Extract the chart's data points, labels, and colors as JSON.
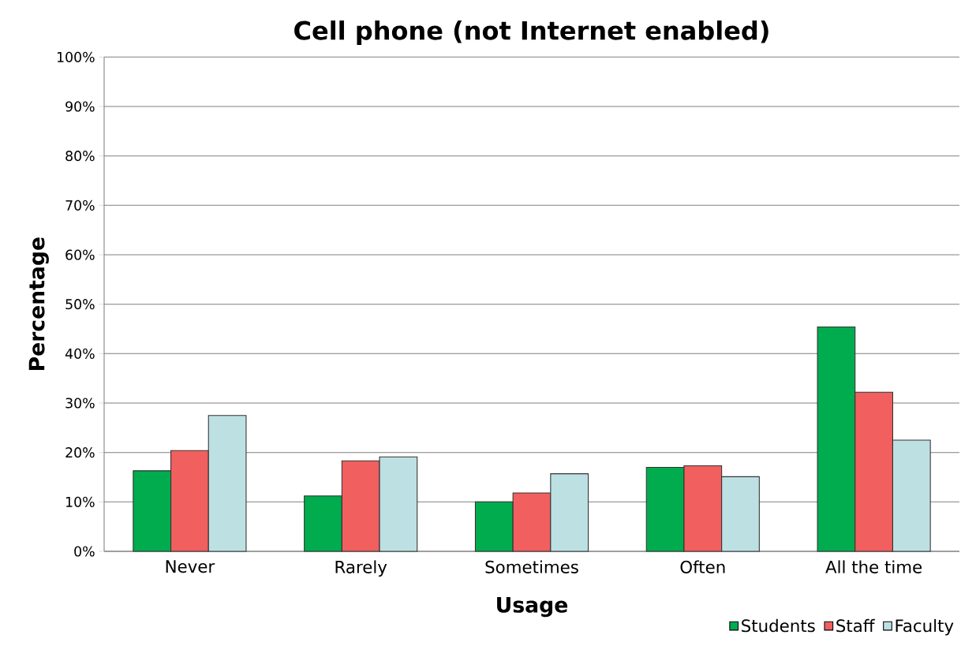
{
  "chart_data": {
    "type": "bar",
    "title": "Cell phone (not Internet enabled)",
    "xlabel": "Usage",
    "ylabel": "Percentage",
    "categories": [
      "Never",
      "Rarely",
      "Sometimes",
      "Often",
      "All the time"
    ],
    "series": [
      {
        "name": "Students",
        "color": "#00ac4e",
        "values": [
          16.3,
          11.2,
          10.0,
          17.0,
          45.4
        ]
      },
      {
        "name": "Staff",
        "color": "#f25f5f",
        "values": [
          20.4,
          18.3,
          11.8,
          17.3,
          32.2
        ]
      },
      {
        "name": "Faculty",
        "color": "#bde0e3",
        "values": [
          27.5,
          19.1,
          15.7,
          15.1,
          22.5
        ]
      }
    ],
    "ylim": [
      0,
      100
    ],
    "yticks": [
      {
        "value": 0,
        "label": "0%"
      },
      {
        "value": 10,
        "label": "10%"
      },
      {
        "value": 20,
        "label": "20%"
      },
      {
        "value": 30,
        "label": "30%"
      },
      {
        "value": 40,
        "label": "40%"
      },
      {
        "value": 50,
        "label": "50%"
      },
      {
        "value": 60,
        "label": "60%"
      },
      {
        "value": 70,
        "label": "70%"
      },
      {
        "value": 80,
        "label": "80%"
      },
      {
        "value": 90,
        "label": "90%"
      },
      {
        "value": 100,
        "label": "100%"
      }
    ],
    "grid": "y",
    "legend": "bottom right"
  }
}
